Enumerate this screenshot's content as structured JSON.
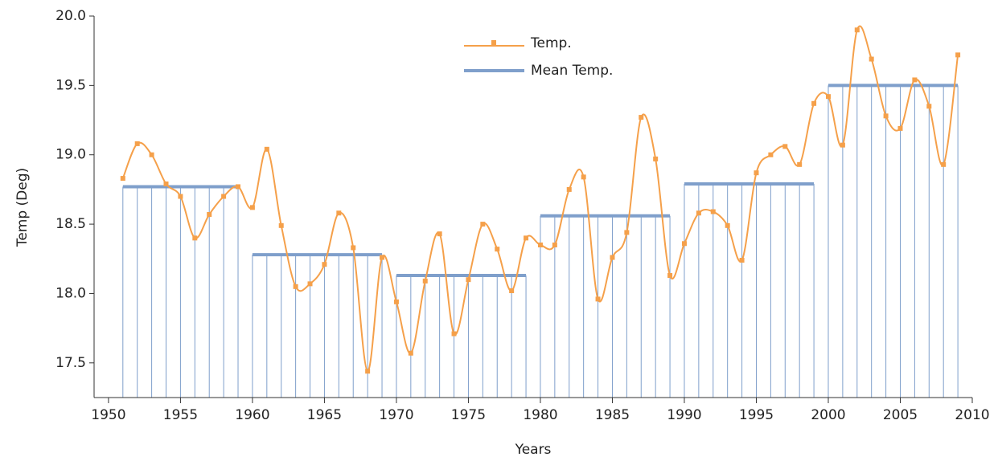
{
  "chart_data": {
    "type": "line",
    "x_label": "Years",
    "y_label": "Temp (Deg)",
    "x": [
      1951,
      1952,
      1953,
      1954,
      1955,
      1956,
      1957,
      1958,
      1959,
      1960,
      1961,
      1962,
      1963,
      1964,
      1965,
      1966,
      1967,
      1968,
      1969,
      1970,
      1971,
      1972,
      1973,
      1974,
      1975,
      1976,
      1977,
      1978,
      1979,
      1980,
      1981,
      1982,
      1983,
      1984,
      1985,
      1986,
      1987,
      1988,
      1989,
      1990,
      1991,
      1992,
      1993,
      1994,
      1995,
      1996,
      1997,
      1998,
      1999,
      2000,
      2001,
      2002,
      2003,
      2004,
      2005,
      2006,
      2007,
      2008,
      2009
    ],
    "series": [
      {
        "name": "Temp.",
        "color": "#f5a04a",
        "values": [
          18.83,
          19.08,
          19.0,
          18.79,
          18.7,
          18.4,
          18.57,
          18.7,
          18.77,
          18.62,
          19.04,
          18.49,
          18.05,
          18.07,
          18.21,
          18.58,
          18.33,
          17.44,
          18.26,
          17.94,
          17.57,
          18.09,
          18.43,
          17.71,
          18.1,
          18.5,
          18.32,
          18.02,
          18.4,
          18.35,
          18.35,
          18.75,
          18.84,
          17.96,
          18.26,
          18.44,
          19.27,
          18.97,
          18.13,
          18.36,
          18.58,
          18.59,
          18.49,
          18.24,
          18.87,
          19.0,
          19.06,
          18.93,
          19.37,
          19.42,
          19.07,
          19.9,
          19.69,
          19.28,
          19.19,
          19.54,
          19.35,
          18.93,
          19.72
        ]
      },
      {
        "name": "Mean Temp.",
        "color": "#7f9fcb",
        "values": [
          18.77,
          18.77,
          18.77,
          18.77,
          18.77,
          18.77,
          18.77,
          18.77,
          18.77,
          18.28,
          18.28,
          18.28,
          18.28,
          18.28,
          18.28,
          18.28,
          18.28,
          18.28,
          18.28,
          18.13,
          18.13,
          18.13,
          18.13,
          18.13,
          18.13,
          18.13,
          18.13,
          18.13,
          18.13,
          18.56,
          18.56,
          18.56,
          18.56,
          18.56,
          18.56,
          18.56,
          18.56,
          18.56,
          18.56,
          18.79,
          18.79,
          18.79,
          18.79,
          18.79,
          18.79,
          18.79,
          18.79,
          18.79,
          18.79,
          19.5,
          19.5,
          19.5,
          19.5,
          19.5,
          19.5,
          19.5,
          19.5,
          19.5,
          19.5
        ]
      }
    ],
    "xlim": [
      1949,
      2010
    ],
    "ylim": [
      17.25,
      20.0
    ],
    "xticks": [
      1950,
      1955,
      1960,
      1965,
      1970,
      1975,
      1980,
      1985,
      1990,
      1995,
      2000,
      2005,
      2010
    ],
    "yticks": [
      17.5,
      {
        "value": 18,
        "label": "18.0"
      },
      18.5,
      {
        "value": 19,
        "label": "19.0"
      },
      19.5,
      {
        "value": 20,
        "label": "20.0"
      }
    ]
  }
}
